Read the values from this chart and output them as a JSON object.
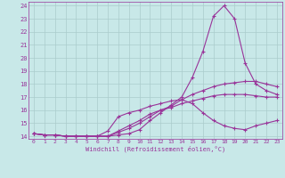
{
  "xlabel": "Windchill (Refroidissement éolien,°C)",
  "bg_color": "#c8e8e8",
  "line_color": "#993399",
  "grid_color": "#aacccc",
  "xlim": [
    -0.5,
    23.5
  ],
  "ylim": [
    13.8,
    24.3
  ],
  "xticks": [
    0,
    1,
    2,
    3,
    4,
    5,
    6,
    7,
    8,
    9,
    10,
    11,
    12,
    13,
    14,
    15,
    16,
    17,
    18,
    19,
    20,
    21,
    22,
    23
  ],
  "yticks": [
    14,
    15,
    16,
    17,
    18,
    19,
    20,
    21,
    22,
    23,
    24
  ],
  "line1_x": [
    0,
    1,
    2,
    3,
    4,
    5,
    6,
    7,
    8,
    9,
    10,
    11,
    12,
    13,
    14,
    15,
    16,
    17,
    18,
    19,
    20,
    21,
    22,
    23
  ],
  "line1_y": [
    14.2,
    14.1,
    14.1,
    14.0,
    14.0,
    14.0,
    14.0,
    14.0,
    14.1,
    14.2,
    14.5,
    15.2,
    15.8,
    16.4,
    17.0,
    18.5,
    20.5,
    23.2,
    24.0,
    23.0,
    19.6,
    18.0,
    17.5,
    17.2
  ],
  "line2_x": [
    0,
    1,
    2,
    3,
    4,
    5,
    6,
    7,
    8,
    9,
    10,
    11,
    12,
    13,
    14,
    15,
    16,
    17,
    18,
    19,
    20,
    21,
    22,
    23
  ],
  "line2_y": [
    14.2,
    14.1,
    14.1,
    14.0,
    14.0,
    14.0,
    14.0,
    14.0,
    14.3,
    14.6,
    15.0,
    15.5,
    16.0,
    16.3,
    16.8,
    17.2,
    17.5,
    17.8,
    18.0,
    18.1,
    18.2,
    18.2,
    18.0,
    17.8
  ],
  "line3_x": [
    0,
    1,
    2,
    3,
    4,
    5,
    6,
    7,
    8,
    9,
    10,
    11,
    12,
    13,
    14,
    15,
    16,
    17,
    18,
    19,
    20,
    21,
    22,
    23
  ],
  "line3_y": [
    14.2,
    14.1,
    14.1,
    14.0,
    14.0,
    14.0,
    14.0,
    14.0,
    14.4,
    14.8,
    15.2,
    15.7,
    16.0,
    16.2,
    16.5,
    16.7,
    16.9,
    17.1,
    17.2,
    17.2,
    17.2,
    17.1,
    17.0,
    17.0
  ],
  "line4_x": [
    0,
    1,
    2,
    3,
    4,
    5,
    6,
    7,
    8,
    9,
    10,
    11,
    12,
    13,
    14,
    15,
    16,
    17,
    18,
    19,
    20,
    21,
    22,
    23
  ],
  "line4_y": [
    14.2,
    14.1,
    14.1,
    14.0,
    14.0,
    14.0,
    14.0,
    14.4,
    15.5,
    15.8,
    16.0,
    16.3,
    16.5,
    16.7,
    16.8,
    16.5,
    15.8,
    15.2,
    14.8,
    14.6,
    14.5,
    14.8,
    15.0,
    15.2
  ]
}
